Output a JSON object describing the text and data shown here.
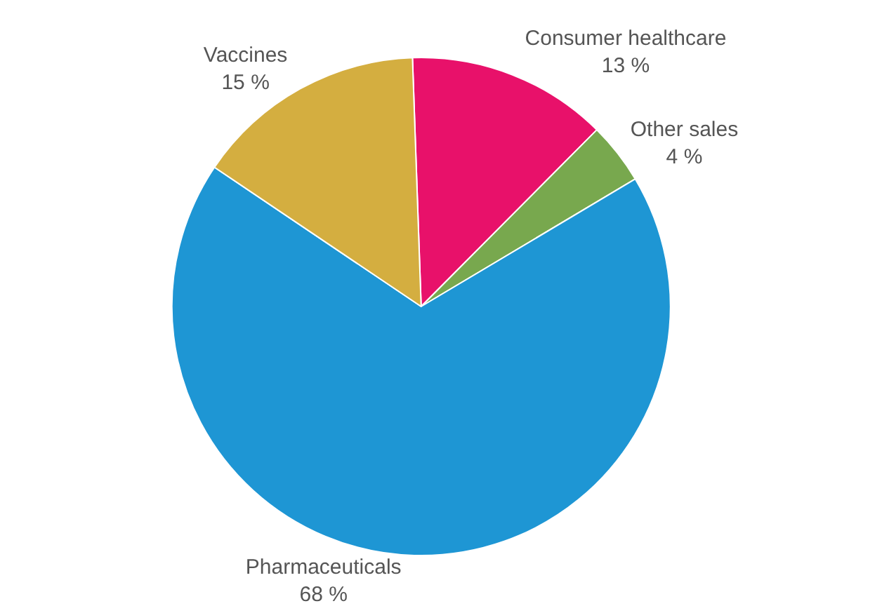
{
  "chart_data": {
    "type": "pie",
    "categories": [
      "Consumer healthcare",
      "Other sales",
      "Pharmaceuticals",
      "Vaccines"
    ],
    "values": [
      13,
      4,
      68,
      15
    ],
    "value_labels": [
      "13 %",
      "4 %",
      "68 %",
      "15 %"
    ],
    "colors": [
      "#e8116a",
      "#78a84e",
      "#1e96d4",
      "#d4ae40"
    ],
    "legend": false
  }
}
